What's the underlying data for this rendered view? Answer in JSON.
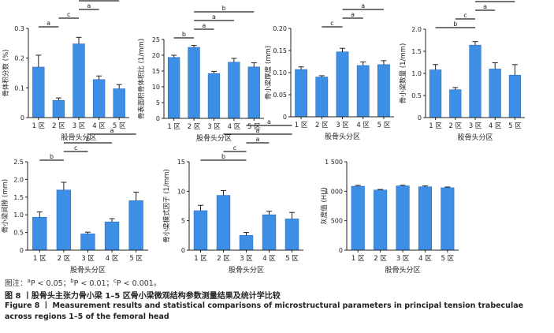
{
  "figure": {
    "note": {
      "prefix": "图注：",
      "a_mark": "a",
      "a_text": "P < 0.05；",
      "b_mark": "b",
      "b_text": "P < 0.01；",
      "c_mark": "c",
      "c_text": "P < 0.001。"
    },
    "caption_cn": "图 8 丨股骨头主张力骨小梁 1–5 区骨小梁微观结构参数测量结果及统计学比较",
    "caption_en": "Figure 8 丨 Measurement results and statistical comparisons of microstructural parameters in principal tension trabeculae across regions 1–5 of the femoral head"
  },
  "colors": {
    "bar": "#3d8fe6",
    "bar_edge": "#2b6fc0",
    "axis": "#222222"
  },
  "chart_data": [
    {
      "type": "bar",
      "ylabel": "骨体积分数 (%)",
      "xlabel": "股骨头分区",
      "categories": [
        "1 区",
        "2 区",
        "3 区",
        "4 区",
        "5 区"
      ],
      "values": [
        0.17,
        0.058,
        0.248,
        0.128,
        0.097
      ],
      "errors": [
        0.04,
        0.008,
        0.022,
        0.012,
        0.014
      ],
      "ylim": [
        0,
        0.3
      ],
      "yticks": [
        "0",
        "0.1",
        "0.2",
        "0.3"
      ],
      "brackets": [
        {
          "from": 1,
          "to": 2,
          "label": "a"
        },
        {
          "from": 2,
          "to": 3,
          "label": "c"
        },
        {
          "from": 3,
          "to": 4,
          "label": "a"
        },
        {
          "from": 3,
          "to": 5,
          "label": "a"
        }
      ]
    },
    {
      "type": "bar",
      "ylabel": "骨表面积骨体积比 (1/mm)",
      "xlabel": "股骨头分区",
      "categories": [
        "1 区",
        "2 区",
        "3 区",
        "4 区",
        "5 区"
      ],
      "values": [
        19.3,
        22.5,
        14.2,
        17.8,
        16.3
      ],
      "errors": [
        0.7,
        0.6,
        0.7,
        1.2,
        1.3
      ],
      "ylim": [
        0,
        25
      ],
      "yticks": [
        "0",
        "5",
        "10",
        "15",
        "20",
        "25"
      ],
      "brackets": [
        {
          "from": 1,
          "to": 2,
          "label": "b"
        },
        {
          "from": 2,
          "to": 3,
          "label": "a"
        },
        {
          "from": 2,
          "to": 4,
          "label": "a"
        },
        {
          "from": 2,
          "to": 5,
          "label": "b"
        }
      ]
    },
    {
      "type": "bar",
      "ylabel": "骨小梁厚度 (mm)",
      "xlabel": "股骨头分区",
      "categories": [
        "1 区",
        "2 区",
        "3 区",
        "4 区",
        "5 区"
      ],
      "values": [
        0.107,
        0.09,
        0.147,
        0.116,
        0.118
      ],
      "errors": [
        0.006,
        0.003,
        0.008,
        0.008,
        0.009
      ],
      "ylim": [
        0,
        0.2
      ],
      "yticks": [
        "0",
        "0.05",
        "0.10",
        "0.15",
        "0.20"
      ],
      "brackets": [
        {
          "from": 2,
          "to": 3,
          "label": "c"
        },
        {
          "from": 3,
          "to": 4,
          "label": "a"
        },
        {
          "from": 3,
          "to": 5,
          "label": "a"
        }
      ]
    },
    {
      "type": "bar",
      "ylabel": "骨小梁数量 (1/mm)",
      "xlabel": "股骨头分区",
      "categories": [
        "1 区",
        "2 区",
        "3 区",
        "4 区",
        "5 区"
      ],
      "values": [
        1.08,
        0.63,
        1.64,
        1.1,
        0.96
      ],
      "errors": [
        0.12,
        0.05,
        0.08,
        0.14,
        0.24
      ],
      "ylim": [
        0,
        2.0
      ],
      "yticks": [
        "0",
        "0.5",
        "1.0",
        "1.5",
        "2.0"
      ],
      "brackets": [
        {
          "from": 1,
          "to": 3,
          "label": "b"
        },
        {
          "from": 2,
          "to": 3,
          "label": "c"
        },
        {
          "from": 3,
          "to": 4,
          "label": "a"
        },
        {
          "from": 3,
          "to": 5,
          "label": "a"
        },
        {
          "from": 3,
          "to": 5,
          "label": "b"
        }
      ]
    },
    {
      "type": "bar",
      "ylabel": "骨小梁间隙 (mm)",
      "xlabel": "股骨头分区",
      "categories": [
        "1 区",
        "2 区",
        "3 区",
        "4 区",
        "5 区"
      ],
      "values": [
        0.93,
        1.7,
        0.46,
        0.8,
        1.4
      ],
      "errors": [
        0.15,
        0.22,
        0.05,
        0.09,
        0.24
      ],
      "ylim": [
        0,
        2.5
      ],
      "yticks": [
        "0",
        "0.5",
        "1.0",
        "1.5",
        "2.0",
        "2.5"
      ],
      "brackets": [
        {
          "from": 1,
          "to": 2,
          "label": "b"
        },
        {
          "from": 2,
          "to": 3,
          "label": "c"
        },
        {
          "from": 2,
          "to": 4,
          "label": "b"
        },
        {
          "from": 3,
          "to": 5,
          "label": "a"
        }
      ]
    },
    {
      "type": "bar",
      "ylabel": "骨小梁模式因子 (1/mm)",
      "xlabel": "股骨头分区",
      "categories": [
        "1 区",
        "2 区",
        "3 区",
        "4 区",
        "5 区"
      ],
      "values": [
        6.7,
        9.3,
        2.5,
        6.0,
        5.3
      ],
      "errors": [
        0.9,
        0.8,
        0.5,
        0.6,
        1.1
      ],
      "ylim": [
        0,
        15
      ],
      "yticks": [
        "0",
        "5",
        "10",
        "15"
      ],
      "brackets": [
        {
          "from": 1,
          "to": 3,
          "label": "b"
        },
        {
          "from": 2,
          "to": 3,
          "label": "c"
        },
        {
          "from": 3,
          "to": 4,
          "label": "a"
        },
        {
          "from": 2,
          "to": 5,
          "label": "a"
        },
        {
          "from": 3,
          "to": 5,
          "label": "a"
        }
      ]
    },
    {
      "type": "bar",
      "ylabel": "灰度值 (HU)",
      "xlabel": "股骨头分区",
      "categories": [
        "1 区",
        "2 区",
        "3 区",
        "4 区",
        "5 区"
      ],
      "values": [
        1085,
        1020,
        1090,
        1075,
        1060
      ],
      "errors": [
        15,
        10,
        12,
        15,
        12
      ],
      "ylim": [
        0,
        1500
      ],
      "yticks": [
        "0",
        "500",
        "1 000",
        "1 500"
      ],
      "brackets": []
    }
  ]
}
